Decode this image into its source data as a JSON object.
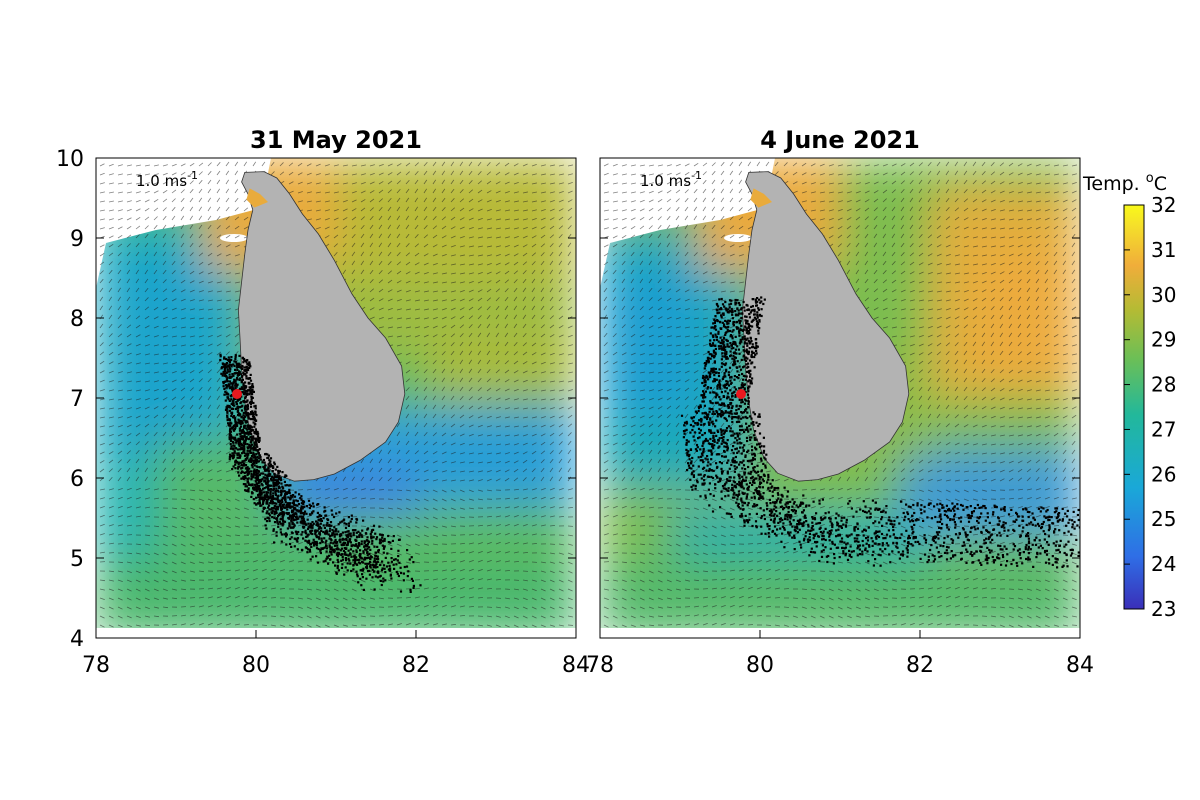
{
  "figure": {
    "colorbar": {
      "title_prefix": "Temp. ",
      "title_super": "o",
      "title_suffix": "C",
      "min": 23,
      "max": 32,
      "ticks": [
        "23",
        "24",
        "25",
        "26",
        "27",
        "28",
        "29",
        "30",
        "31",
        "32"
      ]
    },
    "axes": {
      "x_range": [
        78,
        84
      ],
      "y_range": [
        4,
        10
      ],
      "x_ticks": [
        "78",
        "80",
        "82",
        "84"
      ],
      "y_ticks": [
        "4",
        "5",
        "6",
        "7",
        "8",
        "9",
        "10"
      ]
    },
    "release_point": {
      "lon": 79.78,
      "lat": 7.06,
      "color": "#e8191f"
    },
    "land_color": "#b3b3b3",
    "panels": [
      {
        "title": "31 May 2021",
        "scale_label": "1.0 ms",
        "scale_super": "-1",
        "particle_region": "west coast and south of Sri Lanka, extending to 81.5E"
      },
      {
        "title": "4 June 2021",
        "scale_label": "1.0 ms",
        "scale_super": "-1",
        "particle_region": "west coast and south, extending eastward past 84E"
      }
    ]
  }
}
